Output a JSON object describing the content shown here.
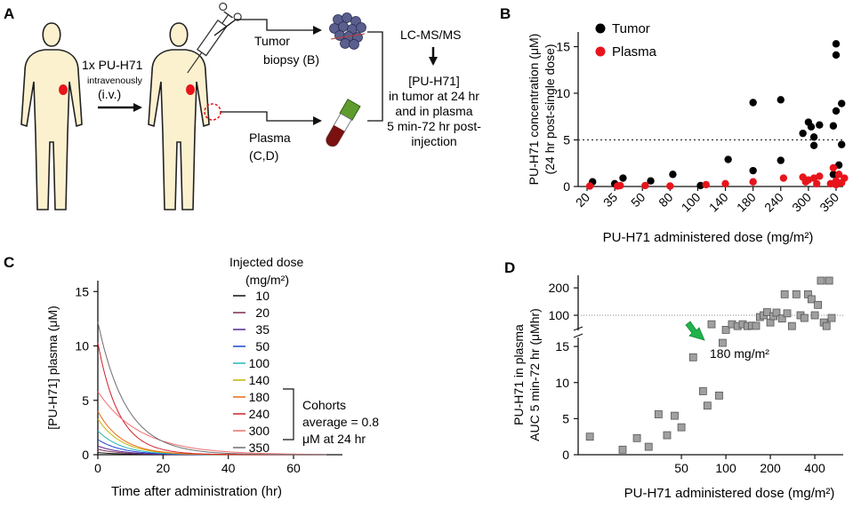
{
  "panel_a": {
    "letter": "A",
    "dose_line1": "1x PU-H71",
    "dose_line2": "intravenously",
    "dose_line3": "(i.v.)",
    "tumor_l1": "Tumor",
    "tumor_l2": "biopsy (B)",
    "plasma_l1": "Plasma",
    "plasma_l2": "(C,D)",
    "lcms": "LC-MS/MS",
    "result": [
      "[PU-H71]",
      "in tumor at 24 hr",
      "and in plasma",
      "5 min-72 hr post-",
      "injection"
    ]
  },
  "colors": {
    "tumor": "#000000",
    "plasma": "#e8141b",
    "skin": "#fbf1cf",
    "marker": "#e8141b",
    "arrow": "#1fb34b",
    "square": "#a0a0a0"
  },
  "chart_data": [
    {
      "panel": "B",
      "type": "scatter",
      "ylabel_lines": [
        "PU-H71 concentration (μM)",
        "(24 hr post-single dose)"
      ],
      "xlabel": "PU-H71 administered dose (mg/m²)",
      "categories": [
        "20",
        "35",
        "50",
        "80",
        "100",
        "140",
        "180",
        "240",
        "300",
        "350"
      ],
      "y_ticks": [
        "0",
        "5",
        "10",
        "15"
      ],
      "ylim": [
        0,
        16
      ],
      "threshold": 5,
      "legend": [
        "Tumor",
        "Plasma"
      ],
      "legend_position": "top-left",
      "series": [
        {
          "name": "Tumor",
          "points": [
            [
              0.2,
              0.5
            ],
            [
              1.0,
              0.3
            ],
            [
              1.3,
              0.9
            ],
            [
              2.3,
              0.6
            ],
            [
              3.1,
              1.3
            ],
            [
              4.1,
              0.1
            ],
            [
              5.1,
              2.9
            ],
            [
              6.0,
              9.0
            ],
            [
              6.0,
              1.7
            ],
            [
              7.0,
              9.3
            ],
            [
              7.0,
              2.8
            ],
            [
              8.0,
              6.9
            ],
            [
              8.1,
              6.4
            ],
            [
              8.2,
              5.3
            ],
            [
              8.2,
              4.4
            ],
            [
              7.8,
              5.7
            ],
            [
              8.4,
              6.6
            ],
            [
              9.0,
              15.3
            ],
            [
              9.0,
              14.1
            ],
            [
              9.2,
              8.9
            ],
            [
              9.0,
              8.1
            ],
            [
              8.9,
              6.5
            ],
            [
              9.2,
              4.5
            ],
            [
              9.1,
              2.3
            ],
            [
              8.9,
              1.3
            ]
          ]
        },
        {
          "name": "Plasma",
          "points": [
            [
              0.1,
              0.05
            ],
            [
              1.1,
              0.05
            ],
            [
              1.2,
              0.1
            ],
            [
              2.1,
              0.1
            ],
            [
              3.0,
              0.05
            ],
            [
              4.3,
              0.2
            ],
            [
              5.0,
              0.3
            ],
            [
              6.0,
              0.5
            ],
            [
              7.1,
              0.9
            ],
            [
              7.8,
              1.0
            ],
            [
              8.0,
              0.7
            ],
            [
              8.2,
              0.9
            ],
            [
              8.4,
              1.1
            ],
            [
              7.9,
              0.5
            ],
            [
              8.3,
              0.3
            ],
            [
              8.9,
              2.0
            ],
            [
              9.0,
              0.6
            ],
            [
              9.0,
              0.2
            ],
            [
              9.1,
              1.3
            ],
            [
              9.2,
              0.4
            ],
            [
              8.8,
              0.3
            ],
            [
              9.3,
              0.9
            ]
          ]
        }
      ]
    },
    {
      "panel": "C",
      "type": "line",
      "ylabel": "[PU-H71] plasma (μM)",
      "xlabel": "Time after administration (hr)",
      "x_ticks": [
        "0",
        "20",
        "40",
        "60"
      ],
      "y_ticks": [
        "0",
        "5",
        "10",
        "15"
      ],
      "xlim": [
        0,
        75
      ],
      "ylim": [
        0,
        16
      ],
      "legend_title_lines": [
        "Injected dose",
        "(mg/m²)"
      ],
      "bracket_note": [
        "Cohorts",
        "average = 0.8",
        "μM at 24 hr"
      ],
      "series": [
        {
          "name": "10",
          "color": "#111111",
          "c0": 0.2,
          "half_life": 5
        },
        {
          "name": "20",
          "color": "#7a2c52",
          "c0": 0.5,
          "half_life": 5
        },
        {
          "name": "35",
          "color": "#5a2495",
          "c0": 0.8,
          "half_life": 5
        },
        {
          "name": "50",
          "color": "#1f45d6",
          "c0": 1.4,
          "half_life": 5
        },
        {
          "name": "100",
          "color": "#26b5b8",
          "c0": 2.2,
          "half_life": 5
        },
        {
          "name": "140",
          "color": "#c5b400",
          "c0": 3.3,
          "half_life": 5
        },
        {
          "name": "180",
          "color": "#ea6a17",
          "c0": 4.0,
          "half_life": 5
        },
        {
          "name": "240",
          "color": "#d1202a",
          "c0": 10.3,
          "half_life": 4.5
        },
        {
          "name": "300",
          "color": "#f06d6d",
          "c0": 5.8,
          "half_life": 9
        },
        {
          "name": "350",
          "color": "#6e6e6e",
          "c0": 12.2,
          "half_life": 6
        }
      ]
    },
    {
      "panel": "D",
      "type": "scatter",
      "ylabel_lines": [
        "PU-H71 in plasma",
        "AUC 5 min-72 hr (μMhr)"
      ],
      "xlabel": "PU-H71 administered dose (mg/m²)",
      "x_ticks": [
        "50",
        "100",
        "200",
        "400"
      ],
      "y_ticks_lower": [
        "0",
        "5",
        "10",
        "15"
      ],
      "y_ticks_upper": [
        "100",
        "200"
      ],
      "reference_line": 100,
      "annotation": "180 mg/m²",
      "points": [
        [
          12,
          2.5
        ],
        [
          20,
          0.7
        ],
        [
          25,
          2.3
        ],
        [
          30,
          1.1
        ],
        [
          35,
          5.6
        ],
        [
          40,
          2.7
        ],
        [
          45,
          5.4
        ],
        [
          50,
          3.8
        ],
        [
          60,
          13.5
        ],
        [
          70,
          8.8
        ],
        [
          75,
          6.8
        ],
        [
          80,
          50
        ],
        [
          90,
          8.2
        ],
        [
          95,
          15.5
        ],
        [
          100,
          19
        ],
        [
          110,
          50
        ],
        [
          120,
          40
        ],
        [
          130,
          50
        ],
        [
          140,
          40
        ],
        [
          150,
          42
        ],
        [
          160,
          41
        ],
        [
          170,
          90
        ],
        [
          180,
          100
        ],
        [
          190,
          108
        ],
        [
          200,
          60
        ],
        [
          210,
          95
        ],
        [
          220,
          107
        ],
        [
          240,
          82
        ],
        [
          250,
          170
        ],
        [
          260,
          105
        ],
        [
          280,
          40
        ],
        [
          300,
          170
        ],
        [
          320,
          100
        ],
        [
          340,
          85
        ],
        [
          360,
          170
        ],
        [
          380,
          150
        ],
        [
          400,
          100
        ],
        [
          420,
          130
        ],
        [
          440,
          240
        ],
        [
          460,
          60
        ],
        [
          480,
          40
        ],
        [
          500,
          240
        ],
        [
          520,
          85
        ]
      ]
    }
  ]
}
